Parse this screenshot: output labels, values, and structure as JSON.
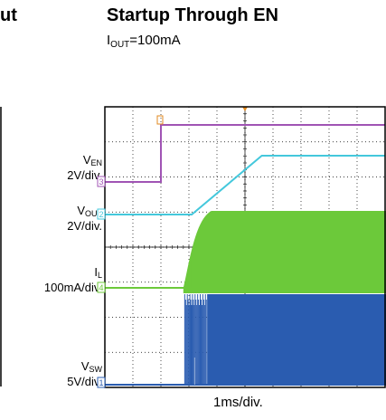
{
  "left_fragment": "ut",
  "title": "Startup Through EN",
  "subtitle": {
    "main": "I",
    "sub": "OUT",
    "rest": "=100mA"
  },
  "time_div": "1ms/div.",
  "colors": {
    "en": "#a054b4",
    "vout": "#44c8dc",
    "il": "#6cc93a",
    "vsw": "#2a5cb0",
    "grid": "#000000"
  },
  "chart_data": {
    "type": "line",
    "title": "Startup Through EN",
    "subtitle": "IOUT=100mA",
    "xlabel": "1ms/div.",
    "x_divisions": 10,
    "y_divisions": 8,
    "series": [
      {
        "name": "VEN",
        "channel": "3",
        "scale": "2V/div.",
        "label_main": "V",
        "label_sub": "EN",
        "x": [
          0,
          2.0,
          2.0,
          10.0
        ],
        "y": [
          0,
          0,
          3.3,
          3.3
        ]
      },
      {
        "name": "VOUT",
        "channel": "2",
        "scale": "2V/div.",
        "label_main": "V",
        "label_sub": "OUT",
        "x": [
          0,
          3.1,
          5.6,
          10.0
        ],
        "y": [
          0,
          0,
          2.9,
          2.9
        ]
      },
      {
        "name": "IL",
        "channel": "4",
        "scale": "100mA/div.",
        "label_main": "I",
        "label_sub": "L",
        "x": [
          0,
          2.8,
          3.2,
          3.8,
          10.0
        ],
        "y": [
          0,
          0,
          150,
          230,
          230
        ]
      },
      {
        "name": "VSW",
        "channel": "1",
        "scale": "5V/div.",
        "label_main": "V",
        "label_sub": "SW",
        "x": [
          0,
          2.8,
          3.6,
          10.0
        ],
        "y": [
          0,
          0,
          5.5,
          5.5
        ]
      }
    ]
  }
}
